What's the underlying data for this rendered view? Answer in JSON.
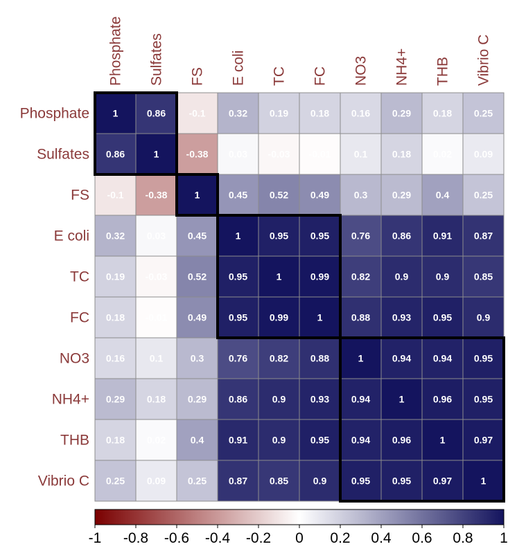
{
  "chart_data": {
    "type": "heatmap",
    "title": "",
    "variables": [
      "Phosphate",
      "Sulfates",
      "FS",
      "E coli",
      "TC",
      "FC",
      "NO3",
      "NH4+",
      "THB",
      "Vibrio C"
    ],
    "matrix": [
      [
        1,
        0.86,
        -0.1,
        0.32,
        0.19,
        0.18,
        0.16,
        0.29,
        0.18,
        0.25
      ],
      [
        0.86,
        1,
        -0.38,
        0.03,
        -0.03,
        -0.01,
        0.1,
        0.18,
        0.02,
        0.09
      ],
      [
        -0.1,
        -0.38,
        1,
        0.45,
        0.52,
        0.49,
        0.3,
        0.29,
        0.4,
        0.25
      ],
      [
        0.32,
        0.03,
        0.45,
        1,
        0.95,
        0.95,
        0.76,
        0.86,
        0.91,
        0.87
      ],
      [
        0.19,
        -0.03,
        0.52,
        0.95,
        1,
        0.99,
        0.82,
        0.9,
        0.9,
        0.85
      ],
      [
        0.18,
        -0.01,
        0.49,
        0.95,
        0.99,
        1,
        0.88,
        0.93,
        0.95,
        0.9
      ],
      [
        0.16,
        0.1,
        0.3,
        0.76,
        0.82,
        0.88,
        1,
        0.94,
        0.94,
        0.95
      ],
      [
        0.29,
        0.18,
        0.29,
        0.86,
        0.9,
        0.93,
        0.94,
        1,
        0.96,
        0.95
      ],
      [
        0.18,
        0.02,
        0.4,
        0.91,
        0.9,
        0.95,
        0.94,
        0.96,
        1,
        0.97
      ],
      [
        0.25,
        0.09,
        0.25,
        0.87,
        0.85,
        0.9,
        0.95,
        0.95,
        0.97,
        1
      ]
    ],
    "clusters": [
      {
        "start": 0,
        "end": 1
      },
      {
        "start": 2,
        "end": 2
      },
      {
        "start": 3,
        "end": 5
      },
      {
        "start": 6,
        "end": 9
      }
    ],
    "color_range": [
      -1,
      1
    ],
    "colorbar_ticks": [
      "-1",
      "-0.8",
      "-0.6",
      "-0.4",
      "-0.2",
      "0",
      "0.2",
      "0.4",
      "0.6",
      "0.8",
      "1"
    ],
    "colors": {
      "negative": "#7a0000",
      "neutral": "#ffffff",
      "positive": "#14145e",
      "label": "#8b3a3a",
      "grid": "#8c8c8c"
    }
  }
}
